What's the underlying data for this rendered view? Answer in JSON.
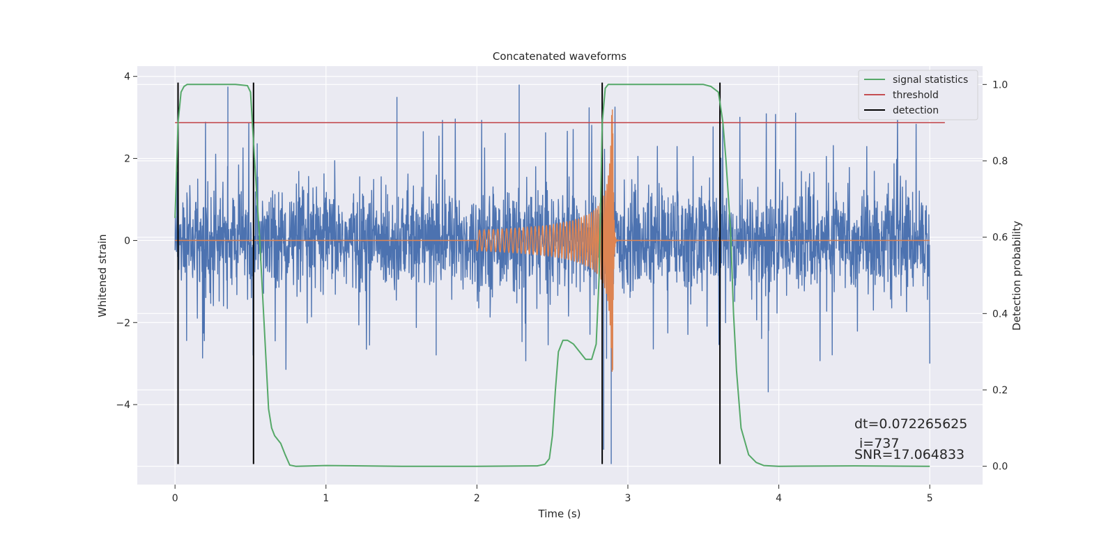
{
  "chart_data": {
    "type": "line",
    "title": "Concatenated waveforms",
    "xlabel": "Time (s)",
    "ylabel": "Whitened strain",
    "ylabel_right": "Detection probability",
    "xlim": [
      -0.25,
      5.35
    ],
    "ylim": [
      -5.95,
      4.25
    ],
    "ylim_right": [
      -0.048,
      1.048
    ],
    "x_ticks": [
      0,
      1,
      2,
      3,
      4,
      5
    ],
    "y_ticks": [
      4,
      2,
      0,
      -2,
      -4
    ],
    "y_ticks_right": [
      1.0,
      0.8,
      0.6,
      0.4,
      0.2,
      0.0
    ],
    "grid": true,
    "legend_position": "top-right",
    "colors": {
      "strain": "#4c72b0",
      "template": "#dd8452",
      "signal_statistics": "#55a868",
      "threshold": "#c44e52",
      "detection": "#000000",
      "background": "#eaeaf2",
      "grid": "#ffffff"
    },
    "legend": [
      {
        "label": "signal statistics",
        "color": "#55a868"
      },
      {
        "label": "threshold",
        "color": "#c44e52"
      },
      {
        "label": "detection",
        "color": "#000000"
      }
    ],
    "series": [
      {
        "name": "signal statistics",
        "axis": "right",
        "x": [
          0,
          0.02,
          0.04,
          0.06,
          0.08,
          0.1,
          0.2,
          0.3,
          0.4,
          0.48,
          0.5,
          0.52,
          0.54,
          0.56,
          0.58,
          0.6,
          0.62,
          0.64,
          0.66,
          0.7,
          0.73,
          0.76,
          0.8,
          1.0,
          1.5,
          2.0,
          2.4,
          2.45,
          2.48,
          2.5,
          2.52,
          2.54,
          2.57,
          2.6,
          2.64,
          2.68,
          2.72,
          2.76,
          2.79,
          2.81,
          2.83,
          2.85,
          2.87,
          2.9,
          3.0,
          3.5,
          3.55,
          3.6,
          3.63,
          3.65,
          3.68,
          3.7,
          3.72,
          3.75,
          3.8,
          3.85,
          3.9,
          4.0,
          4.5,
          5.0
        ],
        "y": [
          0.65,
          0.9,
          0.98,
          0.995,
          1.0,
          1.0,
          1.0,
          1.0,
          1.0,
          0.997,
          0.98,
          0.85,
          0.72,
          0.6,
          0.45,
          0.3,
          0.15,
          0.1,
          0.08,
          0.06,
          0.03,
          0.003,
          0.0,
          0.002,
          0.0,
          0.0,
          0.001,
          0.005,
          0.02,
          0.08,
          0.2,
          0.3,
          0.33,
          0.33,
          0.32,
          0.3,
          0.28,
          0.28,
          0.32,
          0.5,
          0.9,
          0.99,
          1.0,
          1.0,
          1.0,
          1.0,
          0.995,
          0.98,
          0.9,
          0.8,
          0.62,
          0.4,
          0.25,
          0.1,
          0.03,
          0.01,
          0.002,
          0.0,
          0.001,
          0.0
        ]
      },
      {
        "name": "threshold",
        "axis": "right",
        "x": [
          0,
          5.1
        ],
        "y": [
          0.9,
          0.9
        ]
      }
    ],
    "detections": [
      0.02,
      0.52,
      2.83,
      3.61
    ],
    "detection_range": [
      -5.45,
      3.85
    ],
    "template": {
      "x_start": 2.0,
      "x_peak": 2.9,
      "x_end": 2.95,
      "amp_start": 0.25,
      "amp_peak": 3.2
    },
    "strain": {
      "x_range": [
        0,
        5.0
      ],
      "typical_range": [
        -1.5,
        1.8
      ],
      "spike_max": 3.85,
      "spike_min": -5.5
    },
    "annotations": {
      "dt": "dt=0.072265625",
      "i": "i=737",
      "snr": "SNR=17.064833"
    }
  }
}
